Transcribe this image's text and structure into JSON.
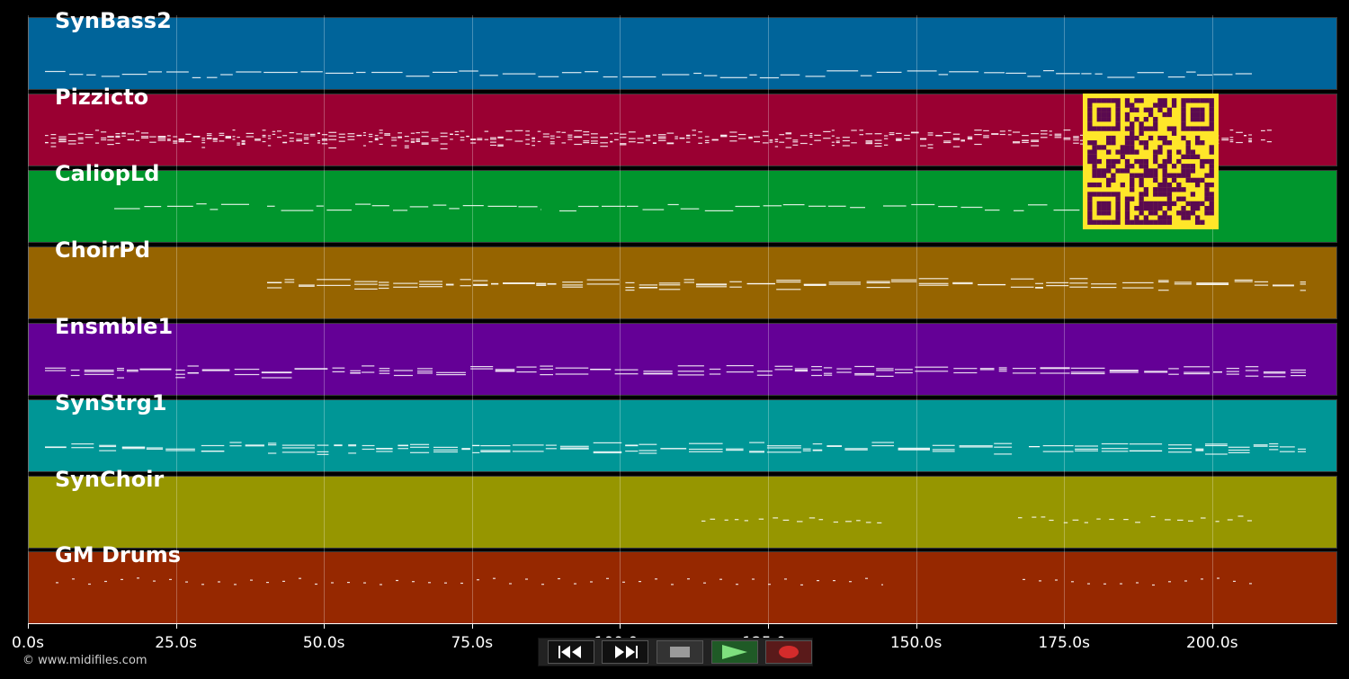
{
  "tracks": [
    {
      "name": "SynBass2",
      "color": "#00649a"
    },
    {
      "name": "Pizzicto",
      "color": "#9a0032"
    },
    {
      "name": "CaliopLd",
      "color": "#00962d"
    },
    {
      "name": "ChoirPd",
      "color": "#966400"
    },
    {
      "name": "Ensmble1",
      "color": "#640096"
    },
    {
      "name": "SynStrg1",
      "color": "#009696"
    },
    {
      "name": "SynChoir",
      "color": "#969600"
    },
    {
      "name": "GM Drums",
      "color": "#962800"
    }
  ],
  "timeline": {
    "ticks": [
      "0.0s",
      "25.0s",
      "50.0s",
      "75.0s",
      "100.0s",
      "125.0s",
      "150.0s",
      "175.0s",
      "200.0s"
    ]
  },
  "transport": {
    "rewind_icon": "rewind-icon",
    "forward_icon": "fast-forward-icon",
    "stop_icon": "stop-icon",
    "play_icon": "play-icon",
    "record_icon": "record-icon"
  },
  "qr": {
    "fg": "#5a0a50",
    "bg": "#ffe629"
  },
  "copyright": "© www.midifiles.com"
}
